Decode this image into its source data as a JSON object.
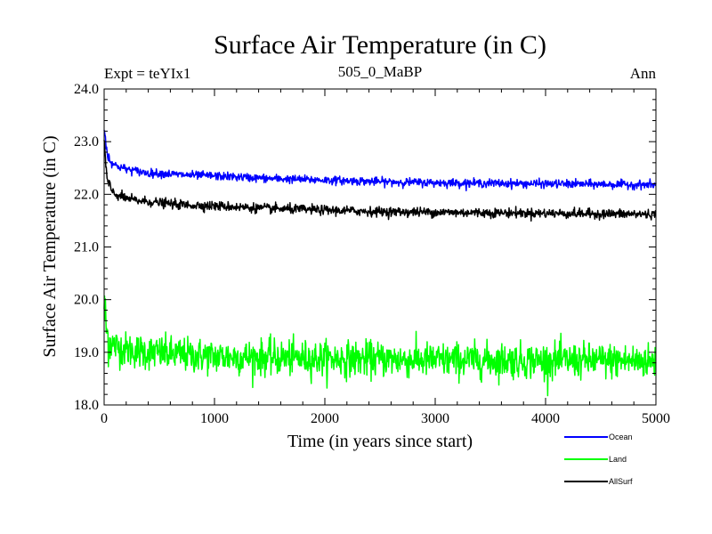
{
  "chart_data": {
    "type": "line",
    "title": "Surface Air Temperature (in C)",
    "subtitle": "505_0_MaBP",
    "left_label": "Expt = teYIx1",
    "right_label": "Ann",
    "xlabel": "Time (in years since start)",
    "ylabel": "Surface Air Temperature (in C)",
    "xlim": [
      0,
      5000
    ],
    "ylim": [
      18.0,
      24.0
    ],
    "x_ticks": [
      0,
      1000,
      2000,
      3000,
      4000,
      5000
    ],
    "x_tick_labels": [
      "0",
      "1000",
      "2000",
      "3000",
      "4000",
      "5000"
    ],
    "y_ticks": [
      18.0,
      19.0,
      20.0,
      21.0,
      22.0,
      23.0,
      24.0
    ],
    "y_tick_labels": [
      "18.0",
      "19.0",
      "20.0",
      "21.0",
      "22.0",
      "23.0",
      "24.0"
    ],
    "grid": false,
    "legend_position": "bottom-right",
    "series": [
      {
        "name": "Ocean",
        "color": "#0000ff",
        "x": [
          0,
          25,
          50,
          100,
          200,
          300,
          400,
          500,
          700,
          1000,
          1500,
          2000,
          2500,
          3000,
          3500,
          4000,
          4500,
          5000
        ],
        "y": [
          23.3,
          22.8,
          22.65,
          22.55,
          22.48,
          22.44,
          22.4,
          22.4,
          22.37,
          22.35,
          22.3,
          22.27,
          22.24,
          22.22,
          22.21,
          22.2,
          22.19,
          22.18
        ],
        "noise": 0.07
      },
      {
        "name": "Land",
        "color": "#00ff00",
        "x": [
          0,
          25,
          50,
          100,
          200,
          400,
          700,
          1000,
          1500,
          2000,
          2500,
          3000,
          3500,
          4000,
          4500,
          5000
        ],
        "y": [
          19.9,
          19.35,
          19.2,
          19.12,
          19.05,
          19.0,
          18.95,
          18.92,
          18.9,
          18.88,
          18.87,
          18.85,
          18.85,
          18.84,
          18.84,
          18.83
        ],
        "noise": 0.3
      },
      {
        "name": "AllSurf",
        "color": "#000000",
        "x": [
          0,
          25,
          50,
          100,
          200,
          300,
          500,
          700,
          1000,
          1500,
          2000,
          2500,
          3000,
          3500,
          4000,
          4500,
          5000
        ],
        "y": [
          23.0,
          22.3,
          22.12,
          22.0,
          21.92,
          21.88,
          21.84,
          21.8,
          21.78,
          21.73,
          21.7,
          21.67,
          21.66,
          21.65,
          21.64,
          21.63,
          21.62
        ],
        "noise": 0.08
      }
    ]
  }
}
